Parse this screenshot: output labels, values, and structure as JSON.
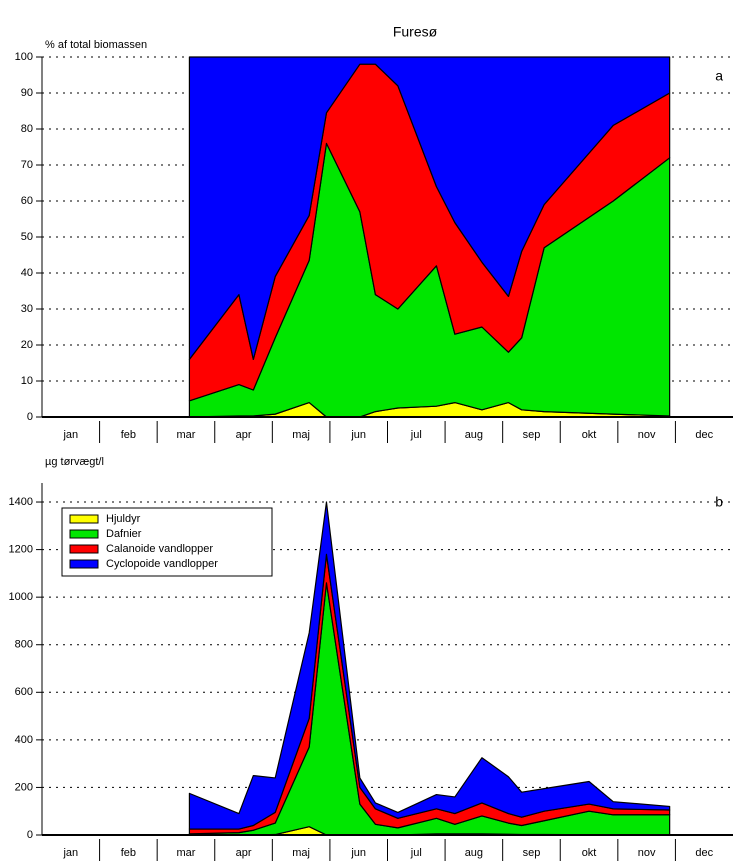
{
  "chart_data": [
    {
      "type": "stacked-area",
      "title": "Furesø",
      "ylabel": "% af total biomassen",
      "annotation": "a",
      "categories": [
        "jan",
        "feb",
        "mar",
        "apr",
        "maj",
        "jun",
        "jul",
        "aug",
        "sep",
        "okt",
        "nov",
        "dec"
      ],
      "xlim": [
        0,
        12
      ],
      "x": [
        2.56,
        3.42,
        3.67,
        4.05,
        4.64,
        4.94,
        5.52,
        5.79,
        6.18,
        6.85,
        7.17,
        7.64,
        8.1,
        8.33,
        8.72,
        9.92,
        10.9
      ],
      "ylim": [
        0,
        100
      ],
      "yticks": [
        0,
        10,
        20,
        30,
        40,
        50,
        60,
        70,
        80,
        90,
        100
      ],
      "grid": true,
      "series": [
        {
          "color": "#ffff00",
          "values": [
            0,
            0.3,
            0.3,
            0.8,
            4,
            0,
            0,
            1.5,
            2.5,
            3,
            4,
            2,
            4,
            2,
            1.5,
            0.8,
            0.3
          ]
        },
        {
          "color": "#00e600",
          "values": [
            4.5,
            8.7,
            7.2,
            21.2,
            39.5,
            76,
            57,
            32.5,
            27.5,
            39,
            19,
            23,
            14,
            20,
            45.5,
            59.2,
            71.7
          ]
        },
        {
          "color": "#ff0000",
          "values": [
            11.5,
            25,
            8.5,
            17,
            12.5,
            8.5,
            41,
            64,
            62,
            22,
            31,
            18,
            15.5,
            24,
            12,
            21,
            18
          ]
        },
        {
          "color": "#0000ff",
          "values": [
            84,
            66,
            84,
            61,
            44,
            15.5,
            2,
            2,
            8,
            36,
            46,
            57,
            66.5,
            54,
            41,
            19,
            10
          ]
        }
      ]
    },
    {
      "type": "stacked-area",
      "ylabel": "µg tørvægt/l",
      "annotation": "b",
      "categories": [
        "jan",
        "feb",
        "mar",
        "apr",
        "maj",
        "jun",
        "jul",
        "aug",
        "sep",
        "okt",
        "nov",
        "dec"
      ],
      "xlim": [
        0,
        12
      ],
      "x": [
        2.56,
        3.42,
        3.67,
        4.05,
        4.64,
        4.94,
        5.52,
        5.79,
        6.18,
        6.85,
        7.17,
        7.64,
        8.1,
        8.33,
        8.72,
        9.5,
        9.92,
        10.9
      ],
      "ylim": [
        0,
        1480
      ],
      "yticks": [
        0,
        200,
        400,
        600,
        800,
        1000,
        1200,
        1400
      ],
      "grid": true,
      "legend": "upper left",
      "series": [
        {
          "name": "Hjuldyr",
          "color": "#ffff00",
          "values": [
            0,
            0,
            0,
            2,
            35,
            0,
            0,
            0,
            0,
            5,
            5,
            5,
            3,
            2,
            2,
            1,
            1,
            0
          ]
        },
        {
          "name": "Dafnier",
          "color": "#00e600",
          "values": [
            5,
            10,
            20,
            48,
            335,
            1060,
            130,
            45,
            30,
            65,
            40,
            75,
            47,
            38,
            58,
            99,
            84,
            85
          ]
        },
        {
          "name": "Calanoide vandlopper",
          "color": "#ff0000",
          "values": [
            20,
            15,
            20,
            45,
            120,
            120,
            70,
            65,
            40,
            40,
            45,
            55,
            40,
            35,
            40,
            30,
            25,
            20
          ]
        },
        {
          "name": "Cyclopoide vandlopper",
          "color": "#0000ff",
          "values": [
            150,
            65,
            210,
            145,
            360,
            220,
            40,
            25,
            25,
            60,
            70,
            190,
            155,
            105,
            95,
            95,
            30,
            15
          ]
        }
      ]
    }
  ]
}
